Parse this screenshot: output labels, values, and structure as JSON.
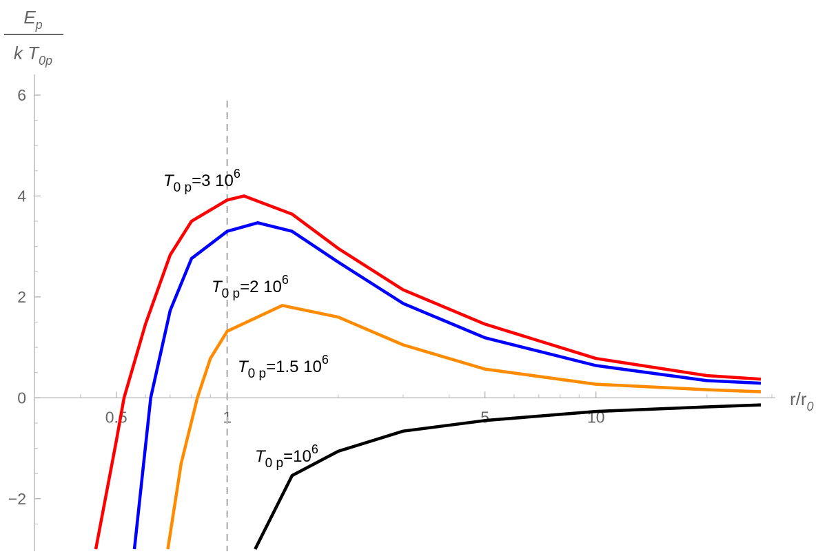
{
  "chart_data": {
    "type": "line",
    "y_label": {
      "numerator": "E",
      "numerator_sub": "p",
      "denominator": "k T",
      "denominator_sub": "0p"
    },
    "x_label": {
      "text": "r/r",
      "sub": "0"
    },
    "x_log": true,
    "xlim": [
      0.3,
      30
    ],
    "ylim": [
      -3,
      6
    ],
    "xticks": [
      0.5,
      1,
      5,
      10
    ],
    "xminorticks": [
      0.3,
      0.4,
      0.6,
      0.7,
      0.8,
      0.9,
      2,
      3,
      4,
      6,
      7,
      8,
      9,
      20,
      30
    ],
    "yticks": [
      {
        "value": -2,
        "label": "−2"
      },
      0,
      2,
      4,
      6
    ],
    "yminorticks": [
      -2.5,
      -1.5,
      -1,
      -0.5,
      0.5,
      1,
      1.5,
      2.5,
      3,
      3.5,
      4.5,
      5,
      5.5
    ],
    "vline": 1,
    "series": [
      {
        "color": "#ff0000",
        "x": [
          0.44,
          0.5,
          0.525,
          0.6,
          0.7,
          0.8,
          1,
          1.11,
          1.5,
          2,
          3,
          5,
          10,
          20,
          28
        ],
        "values": [
          -3,
          -0.86,
          0,
          1.46,
          2.83,
          3.5,
          3.92,
          4.0,
          3.64,
          2.96,
          2.14,
          1.46,
          0.78,
          0.44,
          0.37
        ]
      },
      {
        "color": "#0000ff",
        "x": [
          0.56,
          0.62,
          0.7,
          0.8,
          1,
          1.21,
          1.5,
          2,
          3,
          5,
          10,
          20,
          28
        ],
        "values": [
          -3,
          0,
          1.73,
          2.76,
          3.3,
          3.47,
          3.3,
          2.69,
          1.87,
          1.19,
          0.64,
          0.34,
          0.29
        ]
      },
      {
        "color": "#ff8c00",
        "x": [
          0.69,
          0.75,
          0.83,
          0.9,
          1,
          1.41,
          2,
          3,
          5,
          10,
          20,
          28
        ],
        "values": [
          -3,
          -1.3,
          0,
          0.78,
          1.32,
          1.83,
          1.6,
          1.05,
          0.57,
          0.27,
          0.16,
          0.12
        ]
      },
      {
        "color": "#000000",
        "x": [
          1.19,
          1.5,
          2,
          3,
          5,
          10,
          20,
          28
        ],
        "values": [
          -3,
          -1.54,
          -1.06,
          -0.66,
          -0.45,
          -0.27,
          -0.18,
          -0.14
        ]
      }
    ],
    "annotations": [
      {
        "base": "T",
        "sub": "0 p",
        "main": "=3  10",
        "sup": "6"
      },
      {
        "base": "T",
        "sub": "0 p",
        "main": "=2  10",
        "sup": "6"
      },
      {
        "base": "T",
        "sub": "0 p",
        "main": "=1.5  10",
        "sup": "6"
      },
      {
        "base": "T",
        "sub": "0 p",
        "main": "=10",
        "sup": "6"
      }
    ]
  }
}
